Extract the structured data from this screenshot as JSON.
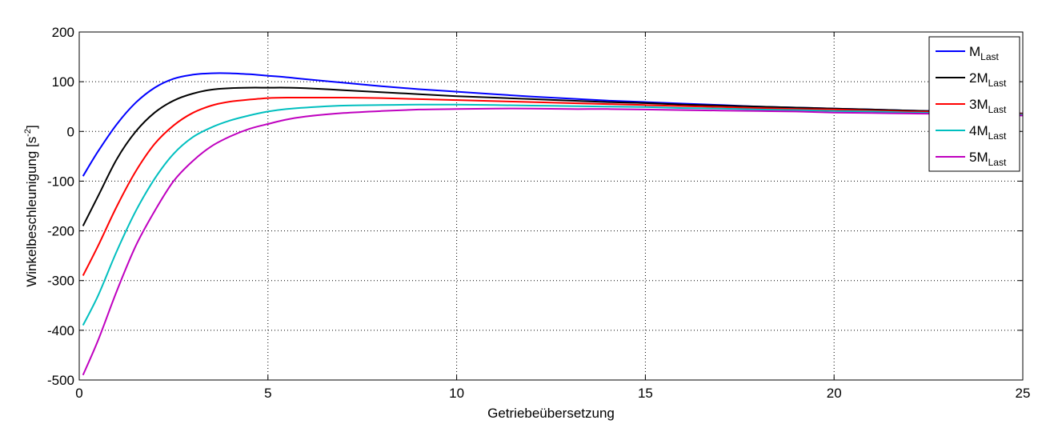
{
  "chart_data": {
    "type": "line",
    "title": "",
    "xlabel": "Getriebeübersetzung",
    "ylabel": {
      "main": "Winkelbeschleunigung [s",
      "sup": "-2",
      "end": "]"
    },
    "xlim": [
      0,
      25
    ],
    "ylim": [
      -500,
      200
    ],
    "xticks": [
      0,
      5,
      10,
      15,
      20,
      25
    ],
    "yticks": [
      -500,
      -400,
      -300,
      -200,
      -100,
      0,
      100,
      200
    ],
    "grid": true,
    "legend_position": "top-right",
    "x": [
      0.1,
      0.5,
      1,
      1.5,
      2,
      2.5,
      3,
      3.5,
      4,
      4.5,
      5,
      5.5,
      6,
      7,
      8,
      9,
      10,
      11,
      12,
      13,
      14,
      15,
      16,
      17,
      18,
      19,
      20,
      21,
      22,
      23,
      24,
      25
    ],
    "series": [
      {
        "name": {
          "main": "M",
          "sub": "Last"
        },
        "color": "#0000ff",
        "values": [
          -90,
          -40,
          15,
          58,
          88,
          106,
          114,
          117,
          117,
          115,
          112,
          109,
          105,
          98,
          91,
          85,
          80,
          75,
          70,
          66,
          62,
          59,
          56,
          53,
          50,
          48,
          46,
          44,
          42,
          40,
          38,
          36
        ]
      },
      {
        "name": {
          "main": "2M",
          "sub": "Last"
        },
        "color": "#000000",
        "values": [
          -190,
          -130,
          -55,
          0,
          38,
          62,
          76,
          84,
          87,
          88,
          88,
          88,
          87,
          83,
          79,
          75,
          71,
          68,
          65,
          62,
          59,
          57,
          54,
          52,
          50,
          48,
          46,
          44,
          42,
          40,
          38,
          36
        ]
      },
      {
        "name": {
          "main": "3M",
          "sub": "Last"
        },
        "color": "#ff0000",
        "values": [
          -290,
          -230,
          -150,
          -80,
          -25,
          12,
          37,
          52,
          60,
          64,
          67,
          68,
          68,
          68,
          67,
          65,
          63,
          61,
          59,
          57,
          55,
          53,
          51,
          49,
          47,
          45,
          44,
          42,
          40,
          39,
          37,
          35
        ]
      },
      {
        "name": {
          "main": "4M",
          "sub": "Last"
        },
        "color": "#00bfbf",
        "values": [
          -390,
          -330,
          -240,
          -160,
          -95,
          -45,
          -12,
          8,
          22,
          32,
          40,
          45,
          48,
          52,
          53,
          54,
          54,
          53,
          52,
          51,
          50,
          49,
          47,
          46,
          44,
          43,
          41,
          40,
          38,
          37,
          35,
          34
        ]
      },
      {
        "name": {
          "main": "5M",
          "sub": "Last"
        },
        "color": "#bf00bf",
        "values": [
          -490,
          -420,
          -320,
          -230,
          -160,
          -100,
          -60,
          -30,
          -10,
          5,
          15,
          24,
          30,
          37,
          41,
          44,
          45,
          46,
          46,
          45,
          45,
          44,
          43,
          42,
          41,
          40,
          38,
          37,
          36,
          35,
          33,
          32
        ]
      }
    ]
  }
}
